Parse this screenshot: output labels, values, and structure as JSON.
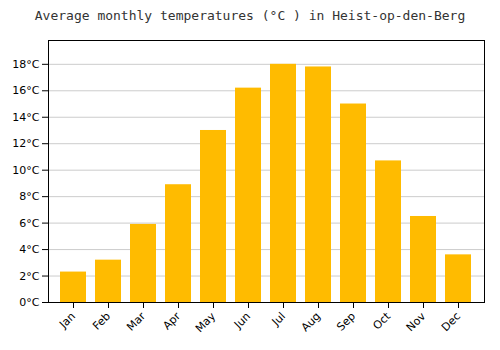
{
  "chart_data": {
    "type": "bar",
    "title": "Average monthly temperatures (°C ) in Heist-op-den-Berg",
    "categories": [
      "Jan",
      "Feb",
      "Mar",
      "Apr",
      "May",
      "Jun",
      "Jul",
      "Aug",
      "Sep",
      "Oct",
      "Nov",
      "Dec"
    ],
    "values": [
      2.3,
      3.2,
      5.9,
      8.9,
      13.0,
      16.2,
      18.0,
      17.8,
      15.0,
      10.7,
      6.5,
      3.6
    ],
    "color": "#FFBB00",
    "ylim": [
      0,
      19.8
    ],
    "yticks": [
      {
        "value": 0,
        "label": "0°C"
      },
      {
        "value": 2,
        "label": "2°C"
      },
      {
        "value": 4,
        "label": "4°C"
      },
      {
        "value": 6,
        "label": "6°C"
      },
      {
        "value": 8,
        "label": "8°C"
      },
      {
        "value": 10,
        "label": "10°C"
      },
      {
        "value": 12,
        "label": "12°C"
      },
      {
        "value": 14,
        "label": "14°C"
      },
      {
        "value": 16,
        "label": "16°C"
      },
      {
        "value": 18,
        "label": "18°C"
      }
    ],
    "grid": true
  }
}
